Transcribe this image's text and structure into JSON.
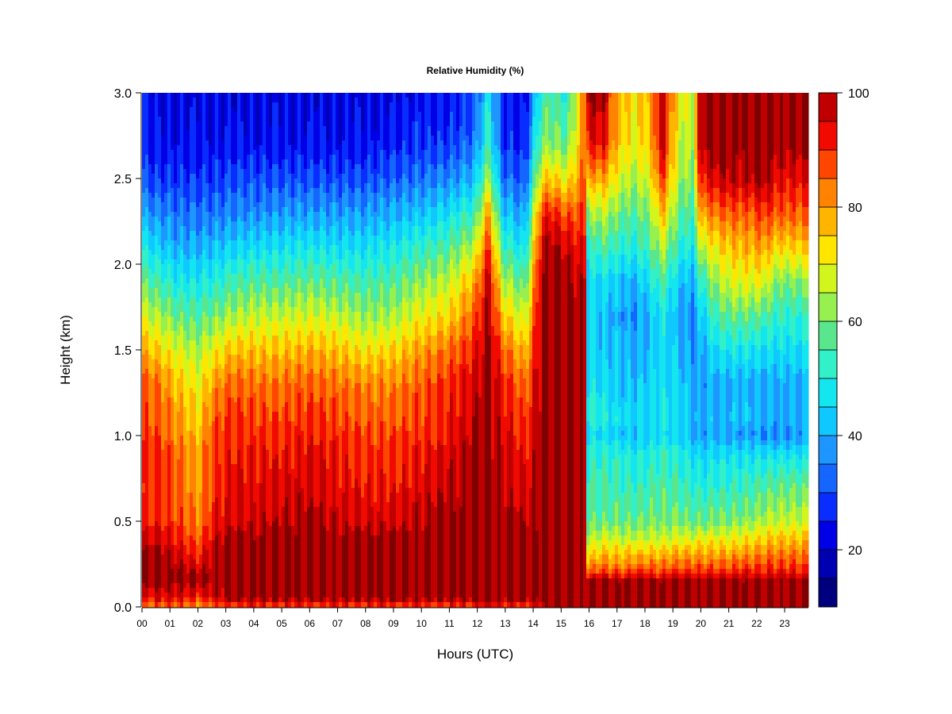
{
  "chart_data": {
    "type": "heatmap",
    "title": "Relative Humidity (%)",
    "xlabel": "Hours (UTC)",
    "ylabel": "Height (km)",
    "x_ticks": [
      "00",
      "01",
      "02",
      "03",
      "04",
      "05",
      "06",
      "07",
      "08",
      "09",
      "10",
      "11",
      "12",
      "13",
      "14",
      "15",
      "16",
      "17",
      "18",
      "19",
      "20",
      "21",
      "22",
      "23"
    ],
    "y_ticks": [
      "0.0",
      "0.5",
      "1.0",
      "1.5",
      "2.0",
      "2.5",
      "3.0"
    ],
    "xlim": [
      0,
      23.85
    ],
    "ylim": [
      0,
      3.0
    ],
    "grid": false,
    "z_unit": "%",
    "colorbar": {
      "levels": [
        10,
        15,
        20,
        25,
        30,
        35,
        40,
        45,
        50,
        55,
        60,
        65,
        70,
        75,
        80,
        85,
        90,
        95,
        100
      ],
      "colors": [
        "#00007f",
        "#0000b3",
        "#0000e6",
        "#0a2dff",
        "#1466ff",
        "#1e96ff",
        "#0fc8ff",
        "#14e6f0",
        "#32f0c8",
        "#5ae68c",
        "#96f050",
        "#d2f51e",
        "#ffe600",
        "#ffb400",
        "#ff8200",
        "#ff4600",
        "#f00a00",
        "#c00000",
        "#7f0000"
      ],
      "tick_labels": [
        "20",
        "40",
        "60",
        "80",
        "100"
      ],
      "tick_values": [
        20,
        40,
        60,
        80,
        100
      ]
    },
    "heights_km": [
      0.0,
      0.05,
      0.15,
      0.22,
      0.3,
      0.4,
      0.5,
      0.7,
      0.9,
      1.0,
      1.1,
      1.3,
      1.5,
      1.7,
      1.9,
      2.1,
      2.3,
      2.5,
      2.7,
      3.0
    ],
    "profiles": [
      {
        "hour": 0.0,
        "rh": [
          80,
          92,
          100,
          100,
          100,
          95,
          90,
          88,
          90,
          88,
          88,
          86,
          78,
          68,
          58,
          48,
          38,
          30,
          26,
          24
        ]
      },
      {
        "hour": 0.6,
        "rh": [
          85,
          95,
          100,
          100,
          100,
          96,
          92,
          90,
          90,
          88,
          86,
          84,
          74,
          64,
          54,
          44,
          36,
          28,
          24,
          22
        ]
      },
      {
        "hour": 1.3,
        "rh": [
          85,
          95,
          100,
          100,
          96,
          92,
          88,
          86,
          84,
          82,
          80,
          76,
          68,
          58,
          48,
          40,
          34,
          28,
          24,
          22
        ]
      },
      {
        "hour": 2.0,
        "rh": [
          78,
          90,
          100,
          96,
          90,
          86,
          82,
          80,
          80,
          76,
          74,
          70,
          64,
          56,
          48,
          40,
          34,
          28,
          24,
          22
        ]
      },
      {
        "hour": 2.6,
        "rh": [
          85,
          95,
          100,
          100,
          100,
          96,
          92,
          90,
          90,
          88,
          86,
          80,
          70,
          60,
          50,
          42,
          34,
          28,
          24,
          22
        ]
      },
      {
        "hour": 3.2,
        "rh": [
          88,
          100,
          100,
          100,
          100,
          100,
          96,
          94,
          92,
          90,
          90,
          86,
          76,
          64,
          54,
          44,
          36,
          30,
          24,
          22
        ]
      },
      {
        "hour": 4.0,
        "rh": [
          88,
          100,
          100,
          100,
          100,
          100,
          96,
          94,
          92,
          90,
          88,
          84,
          76,
          66,
          56,
          46,
          36,
          30,
          24,
          22
        ]
      },
      {
        "hour": 5.0,
        "rh": [
          88,
          100,
          100,
          100,
          100,
          100,
          98,
          95,
          92,
          90,
          88,
          84,
          76,
          66,
          56,
          46,
          38,
          30,
          24,
          22
        ]
      },
      {
        "hour": 6.0,
        "rh": [
          88,
          100,
          100,
          100,
          100,
          100,
          100,
          96,
          94,
          92,
          90,
          86,
          78,
          68,
          58,
          48,
          38,
          30,
          24,
          22
        ]
      },
      {
        "hour": 7.0,
        "rh": [
          88,
          100,
          100,
          100,
          100,
          100,
          96,
          94,
          92,
          90,
          88,
          84,
          76,
          66,
          56,
          46,
          38,
          30,
          24,
          22
        ]
      },
      {
        "hour": 8.0,
        "rh": [
          88,
          100,
          100,
          100,
          100,
          100,
          96,
          92,
          90,
          88,
          86,
          82,
          72,
          62,
          54,
          46,
          38,
          30,
          24,
          22
        ]
      },
      {
        "hour": 9.0,
        "rh": [
          88,
          100,
          100,
          100,
          100,
          100,
          96,
          92,
          90,
          88,
          86,
          82,
          74,
          64,
          56,
          48,
          40,
          32,
          26,
          22
        ]
      },
      {
        "hour": 10.0,
        "rh": [
          88,
          100,
          100,
          100,
          100,
          100,
          98,
          95,
          92,
          90,
          88,
          86,
          80,
          70,
          62,
          52,
          42,
          34,
          28,
          24
        ]
      },
      {
        "hour": 11.0,
        "rh": [
          88,
          100,
          100,
          100,
          100,
          100,
          100,
          98,
          95,
          92,
          92,
          90,
          84,
          74,
          66,
          56,
          46,
          36,
          28,
          24
        ]
      },
      {
        "hour": 11.9,
        "rh": [
          88,
          100,
          100,
          100,
          100,
          100,
          100,
          100,
          100,
          98,
          98,
          96,
          92,
          86,
          78,
          66,
          54,
          42,
          34,
          30
        ]
      },
      {
        "hour": 12.4,
        "rh": [
          95,
          100,
          100,
          100,
          100,
          100,
          100,
          100,
          100,
          100,
          100,
          100,
          100,
          100,
          98,
          90,
          80,
          64,
          54,
          48
        ]
      },
      {
        "hour": 12.9,
        "rh": [
          92,
          100,
          100,
          100,
          100,
          100,
          100,
          98,
          96,
          95,
          95,
          92,
          86,
          76,
          66,
          54,
          44,
          34,
          28,
          26
        ]
      },
      {
        "hour": 13.7,
        "rh": [
          88,
          100,
          100,
          100,
          100,
          100,
          98,
          94,
          92,
          90,
          88,
          84,
          76,
          66,
          56,
          46,
          38,
          30,
          26,
          22
        ]
      },
      {
        "hour": 14.3,
        "rh": [
          95,
          100,
          100,
          100,
          100,
          100,
          100,
          100,
          100,
          100,
          100,
          100,
          100,
          100,
          100,
          96,
          88,
          72,
          60,
          52
        ]
      },
      {
        "hour": 14.6,
        "rh": [
          100,
          100,
          100,
          100,
          100,
          100,
          100,
          100,
          100,
          100,
          100,
          100,
          100,
          100,
          100,
          100,
          92,
          76,
          62,
          56
        ]
      },
      {
        "hour": 15.2,
        "rh": [
          100,
          100,
          100,
          100,
          100,
          100,
          100,
          100,
          100,
          100,
          100,
          100,
          100,
          100,
          100,
          96,
          86,
          70,
          58,
          50
        ]
      },
      {
        "hour": 15.85,
        "rh": [
          100,
          100,
          100,
          100,
          100,
          100,
          100,
          100,
          100,
          100,
          100,
          100,
          100,
          100,
          96,
          92,
          88,
          86,
          84,
          84
        ]
      },
      {
        "hour": 15.95,
        "rh": [
          100,
          100,
          100,
          82,
          74,
          64,
          58,
          54,
          50,
          46,
          50,
          48,
          46,
          44,
          46,
          50,
          62,
          78,
          92,
          100
        ]
      },
      {
        "hour": 16.5,
        "rh": [
          100,
          100,
          100,
          86,
          78,
          68,
          58,
          54,
          52,
          46,
          50,
          46,
          42,
          42,
          46,
          56,
          66,
          80,
          94,
          100
        ]
      },
      {
        "hour": 17.0,
        "rh": [
          100,
          100,
          100,
          84,
          76,
          66,
          58,
          54,
          50,
          44,
          46,
          44,
          42,
          40,
          44,
          52,
          60,
          70,
          76,
          78
        ]
      },
      {
        "hour": 17.6,
        "rh": [
          100,
          100,
          100,
          86,
          78,
          66,
          58,
          52,
          48,
          42,
          44,
          42,
          40,
          36,
          40,
          50,
          56,
          64,
          70,
          72
        ]
      },
      {
        "hour": 18.2,
        "rh": [
          100,
          100,
          100,
          86,
          78,
          66,
          60,
          54,
          50,
          44,
          46,
          44,
          42,
          42,
          48,
          56,
          62,
          70,
          76,
          78
        ]
      },
      {
        "hour": 18.6,
        "rh": [
          100,
          100,
          100,
          86,
          78,
          66,
          60,
          56,
          52,
          46,
          48,
          46,
          46,
          48,
          56,
          66,
          78,
          90,
          98,
          100
        ]
      },
      {
        "hour": 19.2,
        "rh": [
          100,
          100,
          100,
          88,
          80,
          68,
          60,
          54,
          50,
          44,
          46,
          44,
          42,
          40,
          44,
          52,
          58,
          64,
          68,
          70
        ]
      },
      {
        "hour": 19.7,
        "rh": [
          100,
          100,
          100,
          88,
          80,
          68,
          58,
          52,
          46,
          40,
          42,
          40,
          38,
          36,
          40,
          48,
          54,
          60,
          64,
          66
        ]
      },
      {
        "hour": 20.0,
        "rh": [
          100,
          100,
          100,
          88,
          80,
          70,
          58,
          50,
          44,
          38,
          40,
          38,
          40,
          44,
          52,
          66,
          80,
          92,
          100,
          100
        ]
      },
      {
        "hour": 20.5,
        "rh": [
          100,
          100,
          100,
          88,
          80,
          70,
          60,
          52,
          46,
          40,
          42,
          40,
          46,
          54,
          62,
          72,
          84,
          96,
          100,
          100
        ]
      },
      {
        "hour": 21.0,
        "rh": [
          100,
          100,
          100,
          88,
          80,
          70,
          60,
          52,
          46,
          38,
          42,
          40,
          48,
          58,
          68,
          76,
          86,
          98,
          100,
          100
        ]
      },
      {
        "hour": 21.8,
        "rh": [
          100,
          100,
          100,
          90,
          82,
          72,
          62,
          54,
          46,
          38,
          42,
          40,
          48,
          58,
          70,
          78,
          86,
          98,
          100,
          100
        ]
      },
      {
        "hour": 22.2,
        "rh": [
          100,
          100,
          100,
          90,
          84,
          74,
          64,
          56,
          46,
          36,
          40,
          40,
          46,
          56,
          70,
          80,
          90,
          100,
          100,
          100
        ]
      },
      {
        "hour": 22.8,
        "rh": [
          100,
          100,
          100,
          90,
          84,
          76,
          66,
          58,
          46,
          36,
          40,
          40,
          46,
          52,
          60,
          74,
          86,
          94,
          100,
          100
        ]
      },
      {
        "hour": 23.85,
        "rh": [
          100,
          100,
          100,
          90,
          84,
          76,
          66,
          58,
          46,
          38,
          40,
          40,
          46,
          52,
          62,
          76,
          86,
          94,
          100,
          100
        ]
      }
    ]
  }
}
